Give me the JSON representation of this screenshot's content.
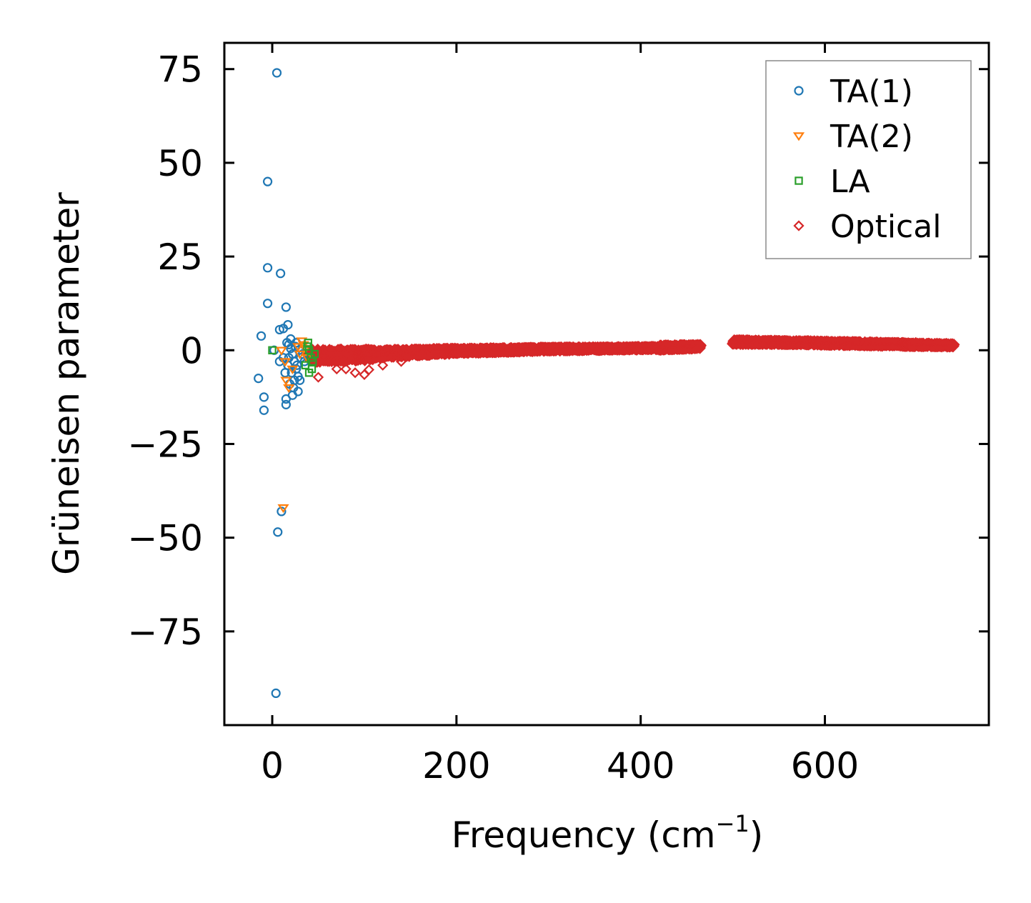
{
  "chart_data": {
    "type": "scatter",
    "title": "",
    "xlabel": "Frequency (cm",
    "xlabel_superscript": "−1",
    "xlabel_suffix": ")",
    "ylabel": "Grüneisen parameter",
    "xlim": [
      -52,
      778
    ],
    "ylim": [
      -100,
      82
    ],
    "xticks": [
      0,
      200,
      400,
      600
    ],
    "xtick_labels": [
      "0",
      "200",
      "400",
      "600"
    ],
    "yticks": [
      75,
      50,
      25,
      0,
      -25,
      -50,
      -75
    ],
    "ytick_labels": [
      "75",
      "50",
      "25",
      "0",
      "−25",
      "−50",
      "−75"
    ],
    "legend_position": "top-right",
    "series": [
      {
        "name": "TA(1)",
        "marker": "circle",
        "color": "#1f77b4",
        "points": [
          [
            5,
            74
          ],
          [
            -5,
            45
          ],
          [
            -5,
            22
          ],
          [
            9,
            20.5
          ],
          [
            -5,
            12.5
          ],
          [
            15,
            11.5
          ],
          [
            -12,
            3.8
          ],
          [
            17,
            6.8
          ],
          [
            8,
            5.5
          ],
          [
            12,
            5.8
          ],
          [
            -15,
            -7.5
          ],
          [
            -9,
            -12.5
          ],
          [
            -9,
            -16
          ],
          [
            15,
            -13
          ],
          [
            15,
            -14.5
          ],
          [
            22,
            -12
          ],
          [
            10,
            -43
          ],
          [
            6,
            -48.5
          ],
          [
            4,
            -91.5
          ],
          [
            2,
            0
          ],
          [
            8,
            -3
          ],
          [
            18,
            -2
          ],
          [
            20,
            0.5
          ],
          [
            22,
            -1
          ],
          [
            24,
            -3
          ],
          [
            26,
            -5
          ],
          [
            28,
            -7
          ],
          [
            30,
            -8
          ],
          [
            25,
            1
          ],
          [
            21,
            -6
          ],
          [
            19,
            -9
          ],
          [
            23,
            -10
          ],
          [
            27,
            -4
          ],
          [
            31,
            -2
          ],
          [
            17,
            -4
          ],
          [
            14,
            -6
          ],
          [
            12,
            -2
          ],
          [
            16,
            2
          ],
          [
            20,
            3
          ],
          [
            29,
            0
          ],
          [
            33,
            -1
          ],
          [
            35,
            -3
          ],
          [
            26,
            2
          ],
          [
            24,
            -8
          ],
          [
            28,
            -11
          ],
          [
            18,
            1.5
          ]
        ]
      },
      {
        "name": "TA(2)",
        "marker": "triangle-down",
        "color": "#ff7f0e",
        "points": [
          [
            32,
            2.5
          ],
          [
            34,
            1.5
          ],
          [
            12,
            -42
          ],
          [
            15,
            -8
          ],
          [
            18,
            -10
          ],
          [
            36,
            0.5
          ],
          [
            10,
            0
          ],
          [
            14,
            -3
          ],
          [
            22,
            -5
          ],
          [
            28,
            1
          ],
          [
            30,
            -1
          ],
          [
            38,
            -2
          ]
        ]
      },
      {
        "name": "LA",
        "marker": "square",
        "color": "#2ca02c",
        "points": [
          [
            0,
            0
          ],
          [
            38,
            1
          ],
          [
            40,
            0
          ],
          [
            42,
            -2
          ],
          [
            44,
            -3
          ],
          [
            46,
            -1
          ],
          [
            36,
            -4
          ],
          [
            40,
            -6
          ],
          [
            43,
            -5
          ],
          [
            39,
            2
          ]
        ]
      },
      {
        "name": "Optical",
        "marker": "diamond",
        "color": "#d62728",
        "points": [
          [
            50,
            -7.2
          ],
          [
            60,
            -3
          ],
          [
            70,
            -5
          ],
          [
            80,
            -5
          ],
          [
            90,
            -6
          ],
          [
            100,
            -6.5
          ],
          [
            105,
            -5.2
          ],
          [
            120,
            -4
          ],
          [
            140,
            -3
          ]
        ]
      }
    ],
    "optical_bands": [
      {
        "x": [
          40,
          110
        ],
        "center": [
          -1.5,
          -1.2
        ],
        "spread": [
          3.5,
          3.0
        ]
      },
      {
        "x": [
          110,
          200
        ],
        "center": [
          -1.0,
          -0.2
        ],
        "spread": [
          2.2,
          1.5
        ]
      },
      {
        "x": [
          200,
          300
        ],
        "center": [
          -0.2,
          0.3
        ],
        "spread": [
          1.4,
          1.0
        ]
      },
      {
        "x": [
          300,
          420
        ],
        "center": [
          0.3,
          0.6
        ],
        "spread": [
          1.0,
          0.8
        ]
      },
      {
        "x": [
          420,
          465
        ],
        "center": [
          0.7,
          1.0
        ],
        "spread": [
          1.4,
          1.0
        ]
      },
      {
        "x": [
          500,
          580
        ],
        "center": [
          2.2,
          2.0
        ],
        "spread": [
          1.2,
          1.0
        ]
      },
      {
        "x": [
          580,
          740
        ],
        "center": [
          2.0,
          1.3
        ],
        "spread": [
          1.1,
          0.9
        ]
      }
    ]
  }
}
